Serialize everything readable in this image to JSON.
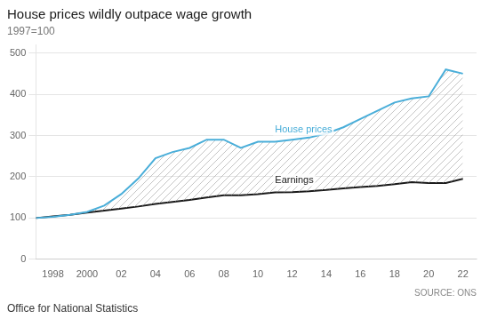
{
  "chart_data": {
    "type": "line",
    "title": "House prices wildly outpace wage growth",
    "subtitle": "1997=100",
    "annotations": [
      "SOURCE: ONS",
      "Office for National Statistics"
    ],
    "x": [
      1997,
      1998,
      1999,
      2000,
      2001,
      2002,
      2003,
      2004,
      2005,
      2006,
      2007,
      2008,
      2009,
      2010,
      2011,
      2012,
      2013,
      2014,
      2015,
      2016,
      2017,
      2018,
      2019,
      2020,
      2021,
      2022
    ],
    "series": [
      {
        "name": "Earnings",
        "color": "#1a1a1a",
        "values": [
          100,
          104,
          108,
          113,
          118,
          123,
          128,
          134,
          139,
          144,
          150,
          155,
          155,
          158,
          162,
          163,
          165,
          168,
          172,
          175,
          178,
          182,
          187,
          185,
          185,
          195
        ]
      },
      {
        "name": "House prices",
        "color": "#4aaed9",
        "values": [
          100,
          103,
          108,
          115,
          130,
          158,
          196,
          245,
          260,
          270,
          290,
          290,
          270,
          285,
          285,
          290,
          295,
          305,
          320,
          340,
          360,
          380,
          390,
          395,
          460,
          450
        ]
      }
    ],
    "xlim": [
      1997,
      2022.8
    ],
    "xticks": [
      1998,
      2000,
      {
        "value": 2002,
        "label": "02"
      },
      {
        "value": 2004,
        "label": "04"
      },
      {
        "value": 2006,
        "label": "06"
      },
      {
        "value": 2008,
        "label": "08"
      },
      {
        "value": 2010,
        "label": "10"
      },
      {
        "value": 2012,
        "label": "12"
      },
      {
        "value": 2014,
        "label": "14"
      },
      {
        "value": 2016,
        "label": "16"
      },
      {
        "value": 2018,
        "label": "18"
      },
      {
        "value": 2020,
        "label": "20"
      },
      {
        "value": 2022,
        "label": "22"
      }
    ],
    "ylim": [
      0,
      520
    ],
    "yticks": [
      0,
      100,
      200,
      300,
      400,
      500
    ],
    "grid": true
  }
}
